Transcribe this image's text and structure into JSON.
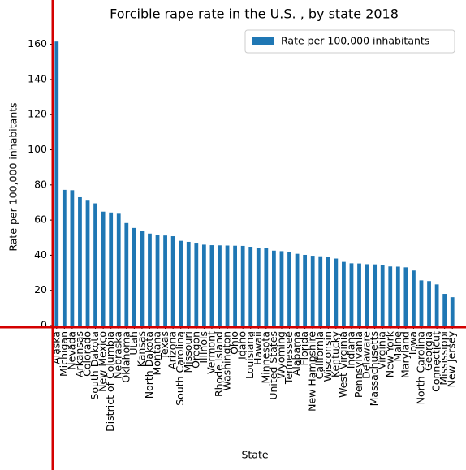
{
  "chart_data": {
    "type": "bar",
    "title": "Forcible rape rate in the U.S. , by state 2018",
    "x_label": "State",
    "y_label": "Rate per 100,000 inhabitants",
    "categories": [
      "Alaska",
      "Michigan",
      "Nevada",
      "Arkansas",
      "Colorado",
      "South Dakota",
      "New Mexico",
      "District of Columbia",
      "Nebraska",
      "Oklahoma",
      "Utah",
      "Kansas",
      "North Dakota",
      "Montana",
      "Texas",
      "Arizona",
      "South Carolina",
      "Missouri",
      "Oregon",
      "Illinois",
      "Vermont",
      "Rhode Island",
      "Washington",
      "Ohio",
      "Idaho",
      "Louisiana",
      "Hawaii",
      "Minnesota",
      "United States",
      "Wyoming",
      "Tennessee",
      "Alabama",
      "Florida",
      "New Hampshire",
      "California",
      "Wisconsin",
      "Kentucky",
      "West Virginia",
      "Indiana",
      "Pennsylvania",
      "Delaware",
      "Massachusetts",
      "Virginia",
      "New York",
      "Maine",
      "Maryland",
      "Iowa",
      "North Carolina",
      "Georgia",
      "Connecticut",
      "Mississippi",
      "New Jersey"
    ],
    "series": [
      {
        "name": "Rate per 100,000 inhabitants",
        "color": "#1f77b4",
        "values": [
          161.6,
          77.2,
          77,
          73,
          71.5,
          69.5,
          64.8,
          64.3,
          63.6,
          58.3,
          55.5,
          53.6,
          52.3,
          51.7,
          51.2,
          50.8,
          48.2,
          47.6,
          47.1,
          46,
          45.7,
          45.6,
          45.5,
          45.4,
          45.3,
          44.8,
          44.2,
          44,
          42.6,
          42.3,
          41.8,
          40.8,
          40.2,
          39.7,
          39.4,
          39.1,
          38.1,
          36.2,
          35.4,
          35.3,
          34.9,
          34.8,
          34.4,
          33.6,
          33.5,
          33.1,
          31.3,
          25.7,
          25.3,
          23.4,
          18,
          16.1
        ]
      }
    ],
    "ylim": [
      0,
      170
    ],
    "yticks": [
      0,
      20,
      40,
      60,
      80,
      100,
      120,
      140,
      160
    ],
    "legend": "upper right",
    "spine_color": "#d40000"
  }
}
